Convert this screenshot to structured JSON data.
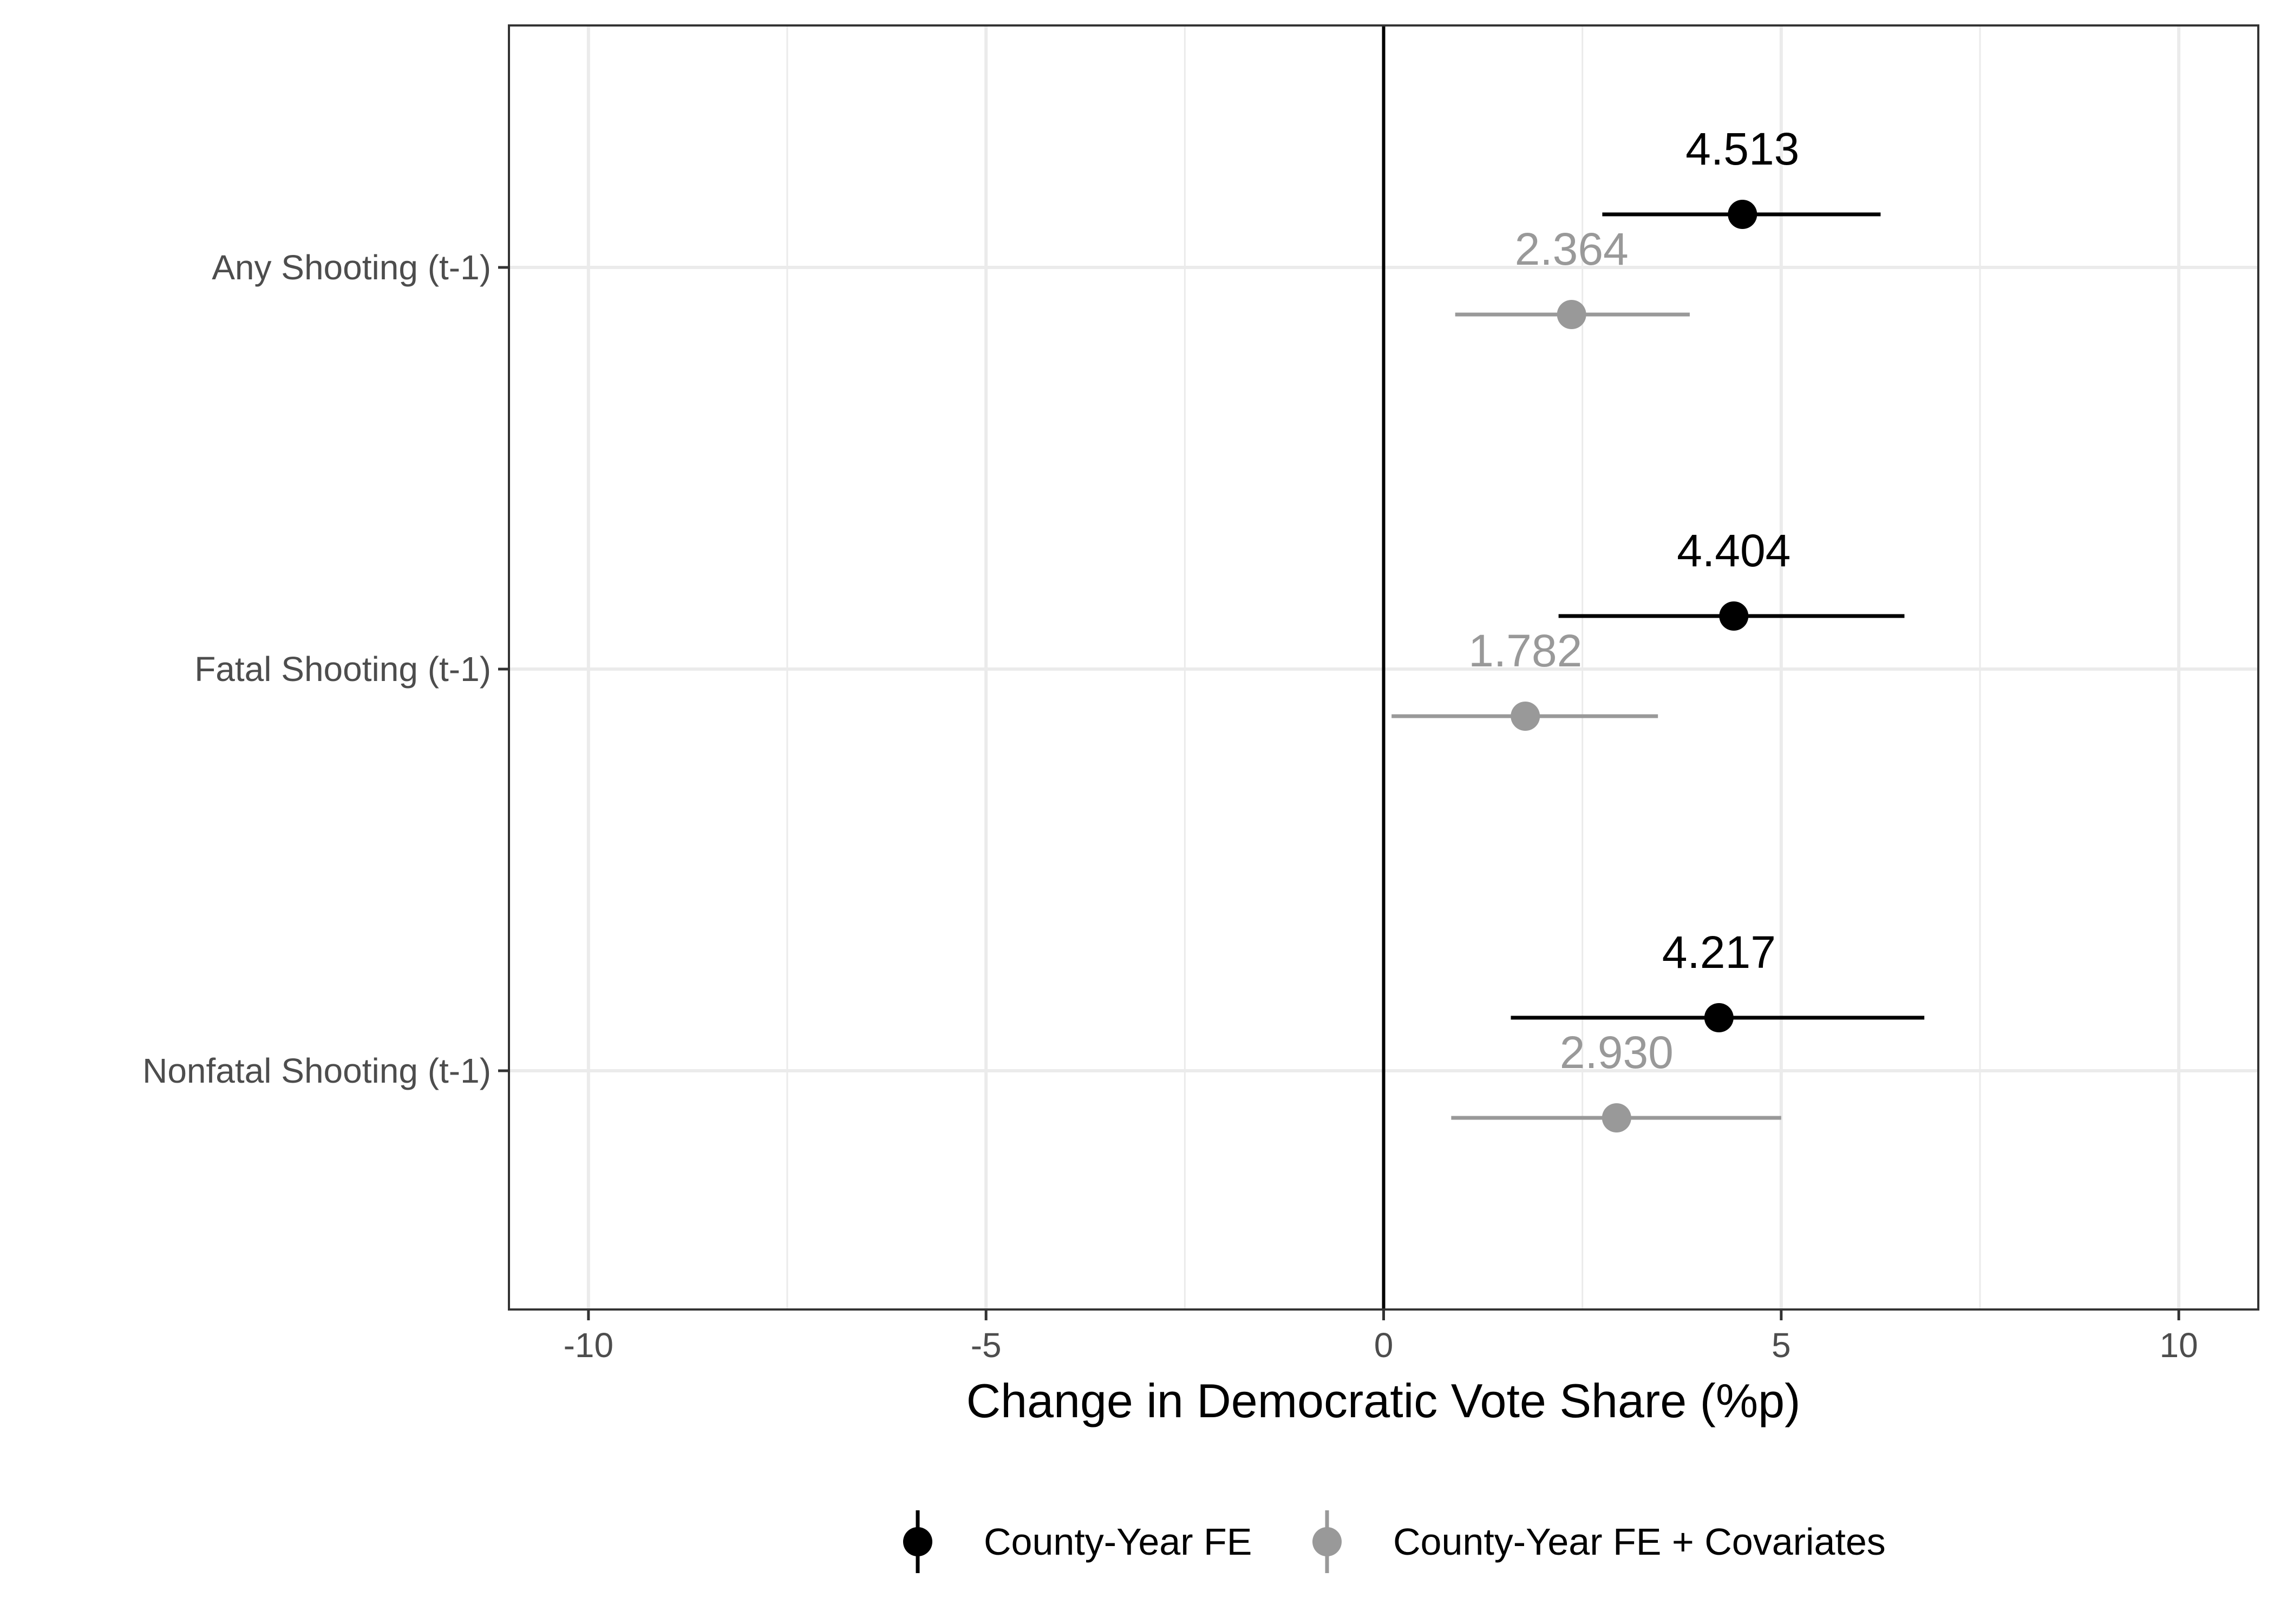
{
  "chart_data": {
    "type": "scatter",
    "subtype": "coefficient-plot",
    "title": "",
    "xlabel": "Change in Democratic Vote Share (%p)",
    "ylabel": "",
    "xlim": [
      -11,
      11
    ],
    "xticks": [
      -10,
      -5,
      0,
      5,
      10
    ],
    "xtick_labels": [
      "-10",
      "-5",
      "0",
      "5",
      "10"
    ],
    "categories": [
      "Any Shooting (t-1)",
      "Fatal Shooting (t-1)",
      "Nonfatal Shooting (t-1)"
    ],
    "reference_line_x": 0,
    "grid": true,
    "legend_position": "bottom",
    "series": [
      {
        "name": "County-Year FE",
        "color": "#000000",
        "estimates": [
          4.513,
          4.404,
          4.217
        ],
        "labels": [
          "4.513",
          "4.404",
          "4.217"
        ],
        "ci_low": [
          2.75,
          2.2,
          1.6
        ],
        "ci_high": [
          6.25,
          6.55,
          6.8
        ]
      },
      {
        "name": "County-Year FE + Covariates",
        "color": "#999999",
        "estimates": [
          2.364,
          1.782,
          2.93
        ],
        "labels": [
          "2.364",
          "1.782",
          "2.930"
        ],
        "ci_low": [
          0.9,
          0.1,
          0.85
        ],
        "ci_high": [
          3.85,
          3.45,
          5.0
        ]
      }
    ]
  }
}
